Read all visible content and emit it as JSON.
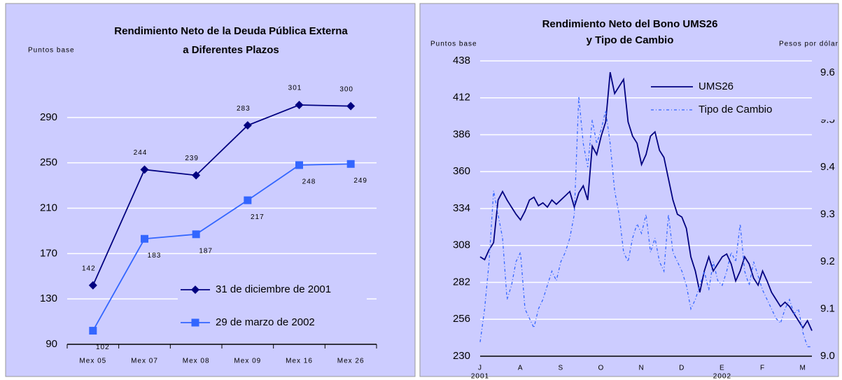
{
  "chart_data": [
    {
      "type": "line",
      "title": [
        "Rendimiento Neto de la Deuda Pública Externa",
        "a Diferentes Plazos"
      ],
      "ylabel": "Puntos base",
      "categories": [
        "Mex 05",
        "Mex 07",
        "Mex 08",
        "Mex 09",
        "Mex 16",
        "Mex 26"
      ],
      "series": [
        {
          "name": "31 de diciembre de 2001",
          "color": "#000080",
          "marker": "diamond",
          "values": [
            142,
            244,
            239,
            283,
            301,
            300
          ]
        },
        {
          "name": "29 de marzo de 2002",
          "color": "#3366ff",
          "marker": "square",
          "values": [
            102,
            183,
            187,
            217,
            248,
            249
          ]
        }
      ],
      "ylim": [
        90,
        330
      ],
      "yticks": [
        90,
        130,
        170,
        210,
        250,
        290
      ],
      "grid": true,
      "data_labels": true
    },
    {
      "type": "line",
      "title": [
        "Rendimiento Neto del Bono UMS26",
        "y Tipo de Cambio"
      ],
      "ylabel": "Puntos base",
      "y2label": "Pesos por dólar",
      "categories": [
        "J",
        null,
        null,
        null,
        null,
        null,
        null,
        null,
        null,
        "A",
        null,
        null,
        null,
        null,
        null,
        null,
        null,
        null,
        "S",
        null,
        null,
        null,
        null,
        null,
        null,
        null,
        null,
        "O",
        null,
        null,
        null,
        null,
        null,
        null,
        null,
        null,
        "N",
        null,
        null,
        null,
        null,
        null,
        null,
        null,
        null,
        "D",
        null,
        null,
        null,
        null,
        null,
        null,
        null,
        null,
        "E",
        null,
        null,
        null,
        null,
        null,
        null,
        null,
        null,
        "F",
        null,
        null,
        null,
        null,
        null,
        null,
        null,
        null,
        "M",
        null,
        null
      ],
      "x_groups": [
        {
          "label": "2001",
          "start": 0
        },
        {
          "label": "2002",
          "start": 54
        }
      ],
      "series": [
        {
          "name": "UMS26",
          "color": "#000080",
          "style": "solid",
          "values": [
            300,
            298,
            305,
            310,
            340,
            346,
            340,
            335,
            330,
            326,
            332,
            340,
            342,
            336,
            338,
            335,
            340,
            337,
            340,
            343,
            346,
            335,
            345,
            350,
            340,
            378,
            372,
            385,
            395,
            430,
            415,
            420,
            425,
            395,
            385,
            380,
            365,
            372,
            385,
            388,
            375,
            370,
            355,
            340,
            330,
            328,
            320,
            300,
            290,
            275,
            290,
            300,
            290,
            295,
            300,
            302,
            295,
            283,
            290,
            300,
            295,
            285,
            280,
            290,
            283,
            275,
            270,
            265,
            268,
            265,
            260,
            255,
            250,
            255,
            248
          ]
        },
        {
          "name": "Tipo de Cambio",
          "color": "#3366ff",
          "style": "dashed",
          "axis": "y2",
          "values": [
            9.03,
            9.1,
            9.2,
            9.35,
            9.3,
            9.25,
            9.12,
            9.15,
            9.2,
            9.22,
            9.1,
            9.08,
            9.06,
            9.1,
            9.12,
            9.15,
            9.18,
            9.16,
            9.2,
            9.22,
            9.25,
            9.3,
            9.55,
            9.45,
            9.4,
            9.5,
            9.45,
            9.48,
            9.52,
            9.45,
            9.35,
            9.3,
            9.22,
            9.2,
            9.25,
            9.28,
            9.26,
            9.3,
            9.22,
            9.25,
            9.2,
            9.18,
            9.3,
            9.22,
            9.2,
            9.18,
            9.15,
            9.1,
            9.12,
            9.15,
            9.18,
            9.14,
            9.2,
            9.16,
            9.15,
            9.18,
            9.22,
            9.2,
            9.28,
            9.18,
            9.15,
            9.2,
            9.17,
            9.14,
            9.12,
            9.1,
            9.08,
            9.07,
            9.1,
            9.12,
            9.09,
            9.1,
            9.05,
            9.02,
            9.02
          ]
        }
      ],
      "ylim": [
        230,
        438
      ],
      "yticks": [
        230,
        256,
        282,
        308,
        334,
        360,
        386,
        412,
        438
      ],
      "y2lim": [
        9.0,
        9.625
      ],
      "y2ticks": [
        {
          "value": 9,
          "label": "9.0"
        },
        9.1,
        9.2,
        9.3,
        9.4,
        9.5,
        9.6
      ],
      "grid": true
    }
  ]
}
